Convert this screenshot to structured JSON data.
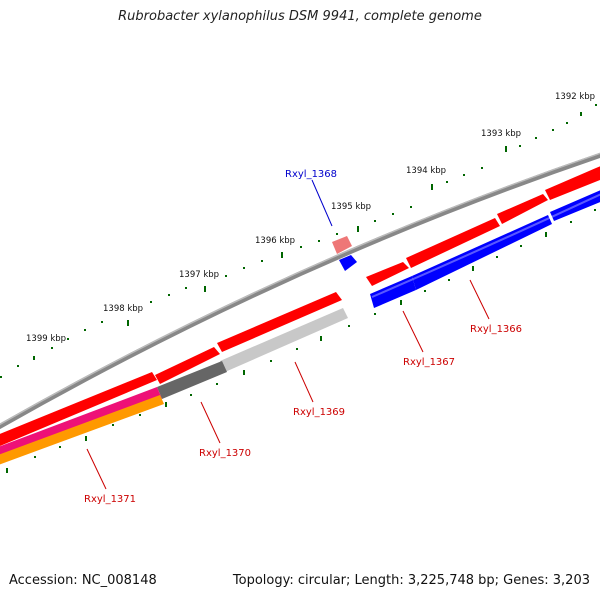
{
  "title": "Rubrobacter xylanophilus DSM 9941, complete genome",
  "footer": {
    "accession": "Accession: NC_008148",
    "summary": "Topology: circular; Length: 3,225,748 bp; Genes: 3,203"
  },
  "scale_labels": [
    "1392 kbp",
    "1393 kbp",
    "1394 kbp",
    "1395 kbp",
    "1396 kbp",
    "1397 kbp",
    "1398 kbp",
    "1399 kbp"
  ],
  "gene_labels": [
    {
      "text": "Rxyl_1368",
      "color": "#0000cc"
    },
    {
      "text": "Rxyl_1366",
      "color": "#cc0000"
    },
    {
      "text": "Rxyl_1367",
      "color": "#cc0000"
    },
    {
      "text": "Rxyl_1369",
      "color": "#cc0000"
    },
    {
      "text": "Rxyl_1370",
      "color": "#cc0000"
    },
    {
      "text": "Rxyl_1371",
      "color": "#cc0000"
    }
  ],
  "colors": {
    "backbone": "#888888",
    "cds": "#ff0000",
    "gene_blue": "#0000ff",
    "pseudo_grey": "#c8c8c8",
    "pseudo_dark": "#666666",
    "magenta": "#ee1177",
    "orange": "#ff9900",
    "tick_green": "#006600"
  }
}
